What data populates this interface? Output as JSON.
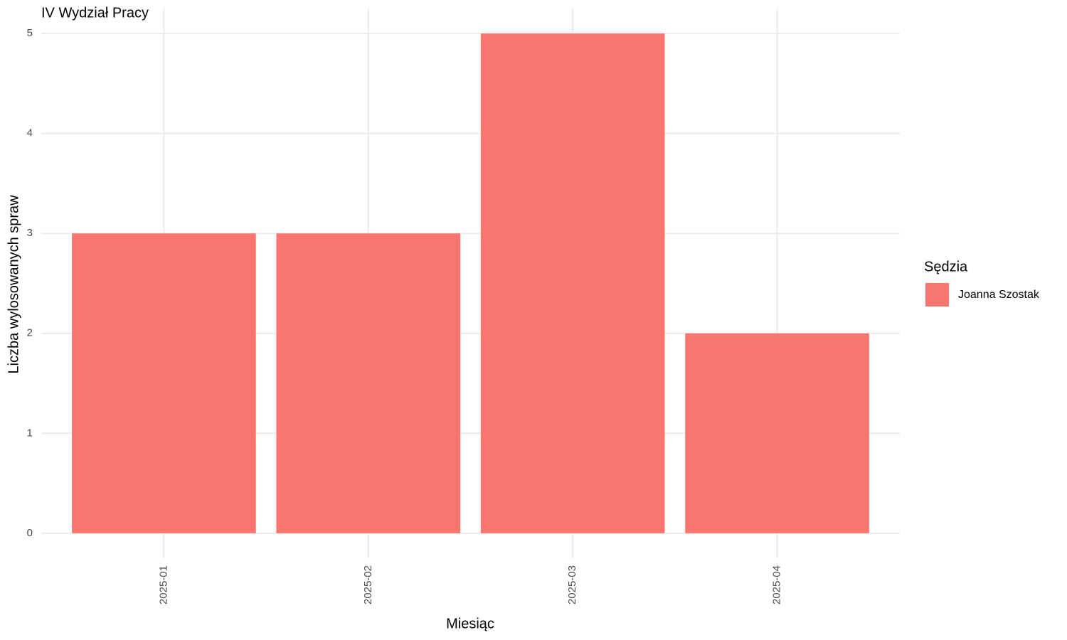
{
  "chart_data": {
    "type": "bar",
    "title": "IV Wydział Pracy",
    "x_label": "Miesiąc",
    "y_label": "Liczba wylosowanych spraw",
    "categories": [
      "2025-01",
      "2025-02",
      "2025-03",
      "2025-04"
    ],
    "series": [
      {
        "name": "Joanna Szostak",
        "color": "#F8766D",
        "values": [
          3,
          3,
          5,
          2
        ]
      }
    ],
    "legend_title": "Sędzia",
    "legend_position": "right",
    "ylim": [
      -0.25,
      5.25
    ],
    "yticks": [
      0,
      1,
      2,
      3,
      4,
      5
    ],
    "grid": true
  }
}
